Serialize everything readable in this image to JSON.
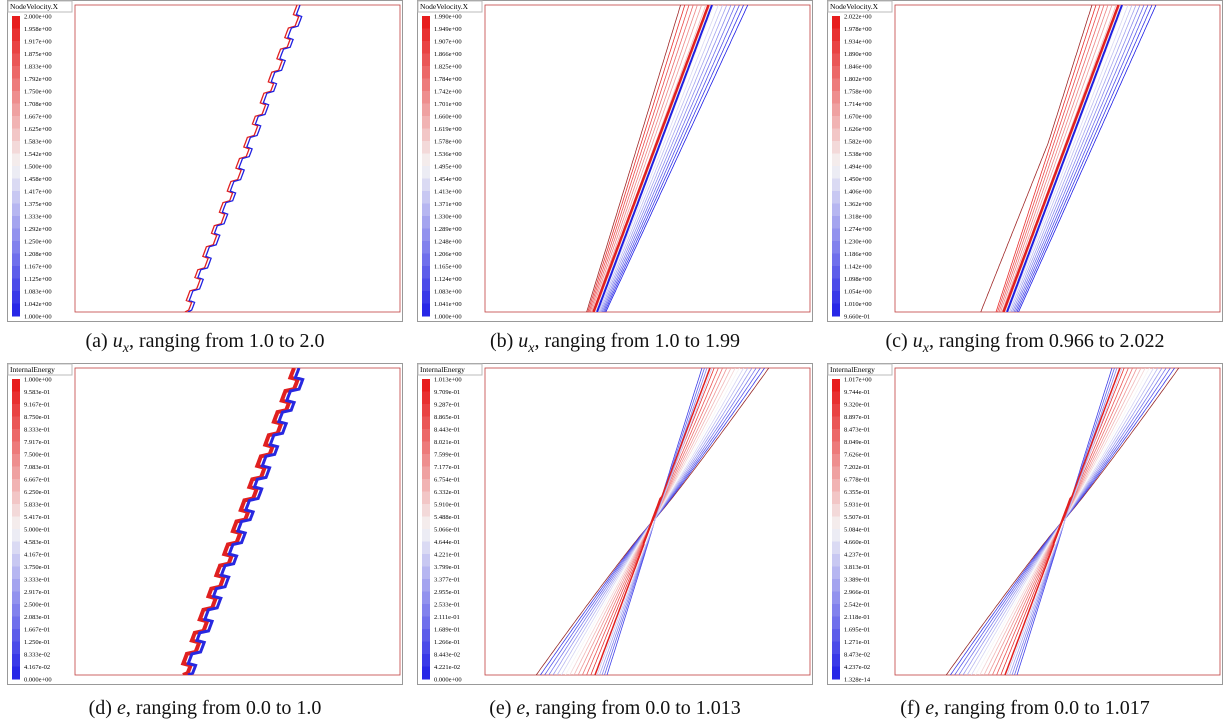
{
  "panels": [
    {
      "colorbar_title": "NodeVelocity.X",
      "colorbar_labels": [
        "2.000e+00",
        "1.958e+00",
        "1.917e+00",
        "1.875e+00",
        "1.833e+00",
        "1.792e+00",
        "1.750e+00",
        "1.708e+00",
        "1.667e+00",
        "1.625e+00",
        "1.583e+00",
        "1.542e+00",
        "1.500e+00",
        "1.458e+00",
        "1.417e+00",
        "1.375e+00",
        "1.333e+00",
        "1.292e+00",
        "1.250e+00",
        "1.208e+00",
        "1.167e+00",
        "1.125e+00",
        "1.083e+00",
        "1.042e+00",
        "1.000e+00"
      ],
      "caption": {
        "label": "(a)",
        "symbol": "u",
        "subscript": "x",
        "text": ", ranging from 1.0 to 2.0"
      }
    },
    {
      "colorbar_title": "NodeVelocity.X",
      "colorbar_labels": [
        "1.990e+00",
        "1.949e+00",
        "1.907e+00",
        "1.866e+00",
        "1.825e+00",
        "1.784e+00",
        "1.742e+00",
        "1.701e+00",
        "1.660e+00",
        "1.619e+00",
        "1.578e+00",
        "1.536e+00",
        "1.495e+00",
        "1.454e+00",
        "1.413e+00",
        "1.371e+00",
        "1.330e+00",
        "1.289e+00",
        "1.248e+00",
        "1.206e+00",
        "1.165e+00",
        "1.124e+00",
        "1.083e+00",
        "1.041e+00",
        "1.000e+00"
      ],
      "caption": {
        "label": "(b)",
        "symbol": "u",
        "subscript": "x",
        "text": ", ranging from 1.0 to 1.99"
      }
    },
    {
      "colorbar_title": "NodeVelocity.X",
      "colorbar_labels": [
        "2.022e+00",
        "1.978e+00",
        "1.934e+00",
        "1.890e+00",
        "1.846e+00",
        "1.802e+00",
        "1.758e+00",
        "1.714e+00",
        "1.670e+00",
        "1.626e+00",
        "1.582e+00",
        "1.538e+00",
        "1.494e+00",
        "1.450e+00",
        "1.406e+00",
        "1.362e+00",
        "1.318e+00",
        "1.274e+00",
        "1.230e+00",
        "1.186e+00",
        "1.142e+00",
        "1.098e+00",
        "1.054e+00",
        "1.010e+00",
        "9.660e-01"
      ],
      "caption": {
        "label": "(c)",
        "symbol": "u",
        "subscript": "x",
        "text": ", ranging from 0.966 to 2.022"
      }
    },
    {
      "colorbar_title": "InternalEnergy",
      "colorbar_labels": [
        "1.000e+00",
        "9.583e-01",
        "9.167e-01",
        "8.750e-01",
        "8.333e-01",
        "7.917e-01",
        "7.500e-01",
        "7.083e-01",
        "6.667e-01",
        "6.250e-01",
        "5.833e-01",
        "5.417e-01",
        "5.000e-01",
        "4.583e-01",
        "4.167e-01",
        "3.750e-01",
        "3.333e-01",
        "2.917e-01",
        "2.500e-01",
        "2.083e-01",
        "1.667e-01",
        "1.250e-01",
        "8.333e-02",
        "4.167e-02",
        "0.000e+00"
      ],
      "caption": {
        "label": "(d)",
        "symbol": "e",
        "text": ", ranging from 0.0 to 1.0"
      }
    },
    {
      "colorbar_title": "InternalEnergy",
      "colorbar_labels": [
        "1.013e+00",
        "9.709e-01",
        "9.287e-01",
        "8.865e-01",
        "8.443e-01",
        "8.021e-01",
        "7.599e-01",
        "7.177e-01",
        "6.754e-01",
        "6.332e-01",
        "5.910e-01",
        "5.488e-01",
        "5.066e-01",
        "4.644e-01",
        "4.221e-01",
        "3.799e-01",
        "3.377e-01",
        "2.955e-01",
        "2.533e-01",
        "2.111e-01",
        "1.689e-01",
        "1.266e-01",
        "8.443e-02",
        "4.221e-02",
        "0.000e+00"
      ],
      "caption": {
        "label": "(e)",
        "symbol": "e",
        "text": ", ranging from 0.0 to 1.013"
      }
    },
    {
      "colorbar_title": "InternalEnergy",
      "colorbar_labels": [
        "1.017e+00",
        "9.744e-01",
        "9.320e-01",
        "8.897e-01",
        "8.473e-01",
        "8.049e-01",
        "7.626e-01",
        "7.202e-01",
        "6.778e-01",
        "6.355e-01",
        "5.931e-01",
        "5.507e-01",
        "5.084e-01",
        "4.660e-01",
        "4.237e-01",
        "3.813e-01",
        "3.389e-01",
        "2.966e-01",
        "2.542e-01",
        "2.118e-01",
        "1.695e-01",
        "1.271e-01",
        "8.473e-02",
        "4.237e-02",
        "1.328e-14"
      ],
      "caption": {
        "label": "(f)",
        "symbol": "e",
        "text": ", ranging from 0.0 to 1.017"
      }
    }
  ]
}
